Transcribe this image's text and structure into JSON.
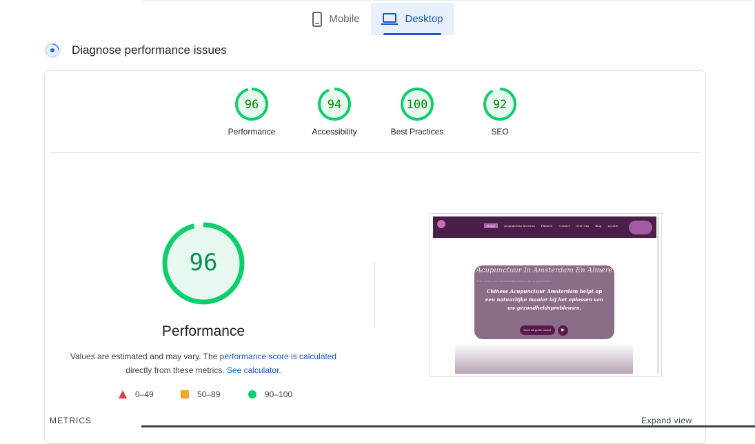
{
  "tabs": {
    "mobile": {
      "label": "Mobile",
      "icon": "phone-icon"
    },
    "desktop": {
      "label": "Desktop",
      "icon": "laptop-icon",
      "selected": true
    }
  },
  "diagnose": {
    "title": "Diagnose performance issues",
    "icon": "gauge-icon"
  },
  "scores": [
    {
      "label": "Performance",
      "value": "96"
    },
    {
      "label": "Accessibility",
      "value": "94"
    },
    {
      "label": "Best Practices",
      "value": "100"
    },
    {
      "label": "SEO",
      "value": "92"
    }
  ],
  "main_gauge": {
    "value": "96",
    "title": "Performance"
  },
  "description": {
    "before": "Values are estimated and may vary. The ",
    "link1": "performance score is calculated",
    "middle": " directly from these metrics. ",
    "link2": "See calculator",
    "after": "."
  },
  "legend": [
    {
      "shape": "triangle",
      "range": "0–49",
      "color": "#eb3b3b"
    },
    {
      "shape": "square",
      "range": "50–89",
      "color": "#f5a623"
    },
    {
      "shape": "circle",
      "range": "90–100",
      "color": "#0cce6b"
    }
  ],
  "colors": {
    "pass": "#0cce6b",
    "pass_text": "#008800",
    "pass_fill": "#e6f8ef",
    "link": "#1a56c4"
  },
  "footer": {
    "metrics_label": "METRICS",
    "expand_label": "Expand view"
  },
  "screenshot": {
    "nav_items": [
      "Home",
      "Acupunctuur Services",
      "Plannen",
      "Contact",
      "Over Ons",
      "Blog",
      "Locatie"
    ],
    "hero_title": "Acupunctuur In Amsterdam En Almere",
    "hero_small": "Bent u klaar voor een natuurlijke aanpak van uw gezondheid?",
    "hero_text": "Chinese Acupunctuur Amsterdam helpt op een natuurlijke manier bij het oplossen van uw gezondheidsproblemen.",
    "button": "Boek uw gratis consult"
  }
}
